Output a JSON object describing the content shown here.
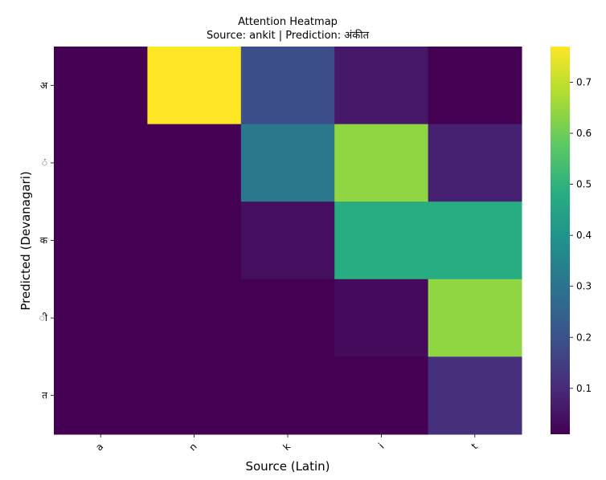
{
  "chart_data": {
    "type": "heatmap",
    "title": "Attention Heatmap",
    "subtitle": "Source: ankit | Prediction: अंकीत",
    "xlabel": "Source (Latin)",
    "ylabel": "Predicted (Devanagari)",
    "x_categories": [
      "a",
      "n",
      "k",
      "i",
      "t"
    ],
    "y_categories": [
      "अ",
      "ं",
      "क",
      "ी",
      "त"
    ],
    "values": [
      [
        0.01,
        0.77,
        0.19,
        0.06,
        0.01
      ],
      [
        0.01,
        0.01,
        0.31,
        0.64,
        0.08
      ],
      [
        0.01,
        0.01,
        0.04,
        0.48,
        0.48
      ],
      [
        0.01,
        0.01,
        0.01,
        0.03,
        0.64
      ],
      [
        0.01,
        0.01,
        0.01,
        0.01,
        0.11
      ]
    ],
    "colormap": "viridis",
    "colorbar": {
      "range": [
        0.01,
        0.77
      ],
      "ticks": [
        0.1,
        0.2,
        0.3,
        0.4,
        0.5,
        0.6,
        0.7
      ],
      "tick_labels": [
        "0.1",
        "0.2",
        "0.3",
        "0.4",
        "0.5",
        "0.6",
        "0.7"
      ]
    },
    "grid": false
  }
}
